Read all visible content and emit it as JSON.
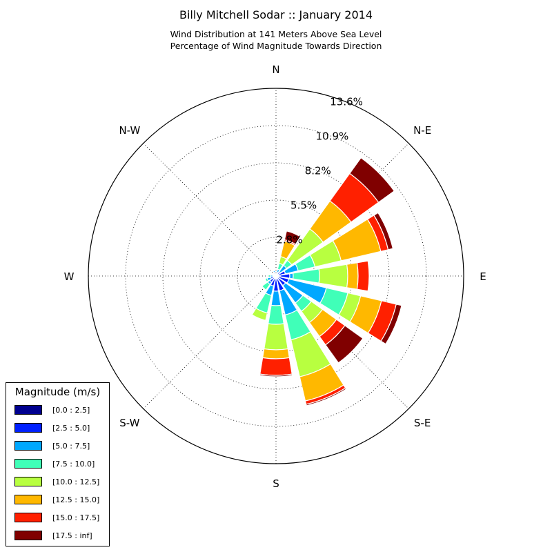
{
  "chart_data": {
    "type": "windrose",
    "title": "Billy Mitchell Sodar :: January 2014",
    "subtitle": [
      "Wind Distribution at 141 Meters Above Sea Level",
      "Percentage of Wind Magnitude Towards Direction"
    ],
    "radial_unit": "%",
    "radial_max": 13.6,
    "radial_ticks": [
      "2.8%",
      "5.5%",
      "8.2%",
      "10.9%",
      "13.6%"
    ],
    "radial_tick_values": [
      2.8,
      5.5,
      8.2,
      10.9,
      13.6
    ],
    "direction_labels": [
      "N",
      "N-E",
      "E",
      "S-E",
      "S",
      "S-W",
      "W",
      "N-W"
    ],
    "grid": true,
    "legend": {
      "title": "Magnitude (m/s)",
      "placement": "lower-left",
      "bins": [
        "[0.0 : 2.5]",
        "[2.5 : 5.0]",
        "[5.0 : 7.5]",
        "[7.5 : 10.0]",
        "[10.0 : 12.5]",
        "[12.5 : 15.0]",
        "[15.0 : 17.5]",
        "[17.5 : inf]"
      ],
      "colors": [
        "#00008f",
        "#0020ff",
        "#00a8ff",
        "#40ffb8",
        "#b8ff40",
        "#ffb800",
        "#ff2000",
        "#800000"
      ]
    },
    "directions_deg": [
      0,
      22.5,
      45,
      67.5,
      90,
      112.5,
      135,
      157.5,
      180,
      202.5,
      225,
      247.5,
      270,
      292.5,
      315,
      337.5
    ],
    "series": [
      {
        "name": "[0.0 : 2.5]",
        "values": [
          0.0,
          0.1,
          0.1,
          0.2,
          0.3,
          0.2,
          0.15,
          0.1,
          0.1,
          0.1,
          0.1,
          0.1,
          0.1,
          0.1,
          0.1,
          0.05
        ]
      },
      {
        "name": "[2.5 : 5.0]",
        "values": [
          0.05,
          0.2,
          0.3,
          0.5,
          0.7,
          0.75,
          0.7,
          1.0,
          1.0,
          0.65,
          0.45,
          0.3,
          0.1,
          0.1,
          0.1,
          0.25
        ]
      },
      {
        "name": "[5.0 : 7.5]",
        "values": [
          0.05,
          0.2,
          0.55,
          0.95,
          0.25,
          2.8,
          1.55,
          1.8,
          1.05,
          0.7,
          0.2,
          0.25,
          0.2,
          0.05,
          0.05,
          0.1
        ]
      },
      {
        "name": "[7.5 : 10.0]",
        "values": [
          0.0,
          0.45,
          0.45,
          1.25,
          1.9,
          1.6,
          0.75,
          1.85,
          1.35,
          1.3,
          0.5,
          0.15,
          0.15,
          0.05,
          0.05,
          0.0
        ]
      },
      {
        "name": "[10.0 : 12.5]",
        "values": [
          0.0,
          0.5,
          2.8,
          1.95,
          2.05,
          0.95,
          1.0,
          2.75,
          1.85,
          0.55,
          0.0,
          0.0,
          0.0,
          0.0,
          0.0,
          0.0
        ]
      },
      {
        "name": "[12.5 : 15.0]",
        "values": [
          0.0,
          1.15,
          2.5,
          2.95,
          0.75,
          1.55,
          1.25,
          1.8,
          0.65,
          0.0,
          0.0,
          0.0,
          0.0,
          0.0,
          0.0,
          0.0
        ]
      },
      {
        "name": "[15.0 : 17.5]",
        "values": [
          0.0,
          0.1,
          2.45,
          0.55,
          0.8,
          1.1,
          0.75,
          0.25,
          1.2,
          0.0,
          0.0,
          0.0,
          0.0,
          0.0,
          0.0,
          0.0
        ]
      },
      {
        "name": "[17.5 : inf]",
        "values": [
          0.0,
          0.65,
          1.4,
          0.35,
          0.0,
          0.4,
          1.6,
          0.1,
          0.1,
          0.0,
          0.0,
          0.0,
          0.0,
          0.0,
          0.0,
          0.0
        ]
      }
    ]
  }
}
